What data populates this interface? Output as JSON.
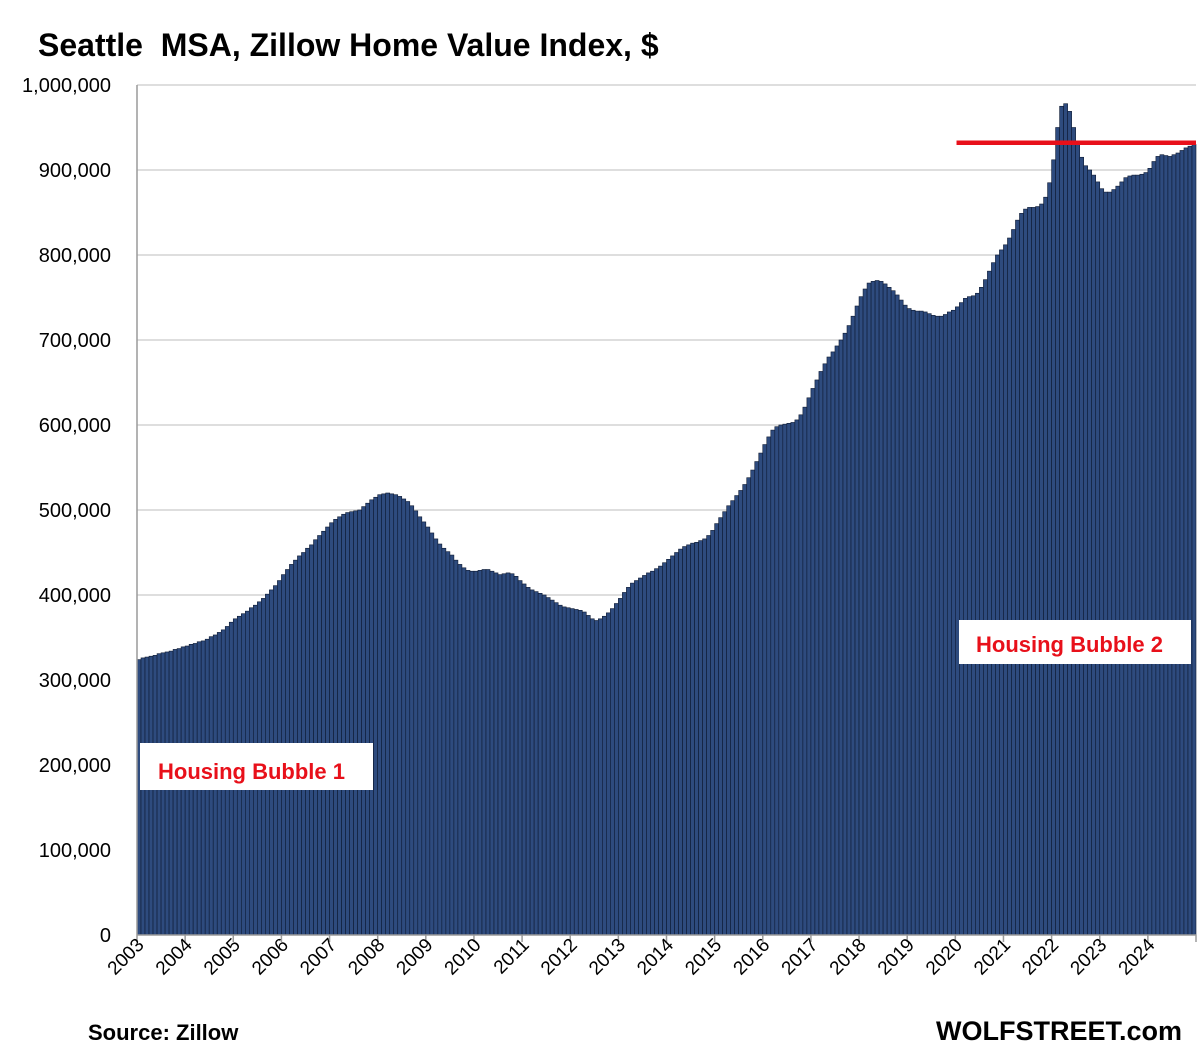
{
  "chart_data": {
    "type": "bar",
    "title": "Seattle  MSA, Zillow Home Value Index, $",
    "xlabel": "",
    "ylabel": "",
    "ylim": [
      0,
      1000000
    ],
    "yticks": [
      "0",
      "100,000",
      "200,000",
      "300,000",
      "400,000",
      "500,000",
      "600,000",
      "700,000",
      "800,000",
      "900,000",
      "1,000,000"
    ],
    "ytick_values": [
      0,
      100000,
      200000,
      300000,
      400000,
      500000,
      600000,
      700000,
      800000,
      900000,
      1000000
    ],
    "xticks": [
      "2003",
      "2004",
      "2005",
      "2006",
      "2007",
      "2008",
      "2009",
      "2010",
      "2011",
      "2012",
      "2013",
      "2014",
      "2015",
      "2016",
      "2017",
      "2018",
      "2019",
      "2020",
      "2021",
      "2022",
      "2023",
      "2024"
    ],
    "frequency": "monthly",
    "start": "2003-01",
    "end": "2024-12",
    "bar_color": "#2e4b7e",
    "reference_line": {
      "value": 932000,
      "from": "2020-01",
      "to": "2024-12",
      "color": "#e8101a"
    },
    "annotations": [
      "Housing Bubble 1",
      "Housing Bubble 2"
    ],
    "source": "Source: Zillow",
    "brand": "WOLFSTREET.com",
    "values": [
      324000,
      326000,
      327000,
      328000,
      329000,
      331000,
      332000,
      333000,
      334000,
      336000,
      337000,
      339000,
      340000,
      342000,
      343000,
      345000,
      346000,
      348000,
      351000,
      353000,
      356000,
      359000,
      363000,
      368000,
      372000,
      375000,
      378000,
      381000,
      385000,
      388000,
      392000,
      396000,
      401000,
      406000,
      411000,
      417000,
      424000,
      430000,
      436000,
      441000,
      446000,
      450000,
      455000,
      459000,
      465000,
      470000,
      475000,
      480000,
      485000,
      489000,
      492000,
      495000,
      497000,
      498000,
      499000,
      500000,
      504000,
      508000,
      512000,
      515000,
      518000,
      519000,
      520000,
      519000,
      518000,
      516000,
      513000,
      510000,
      505000,
      499000,
      492000,
      486000,
      480000,
      473000,
      466000,
      460000,
      455000,
      451000,
      447000,
      441000,
      436000,
      432000,
      429000,
      428000,
      428000,
      429000,
      430000,
      430000,
      428000,
      426000,
      424000,
      425000,
      426000,
      425000,
      422000,
      417000,
      413000,
      409000,
      406000,
      404000,
      402000,
      400000,
      397000,
      394000,
      391000,
      388000,
      386000,
      385000,
      384000,
      383000,
      382000,
      380000,
      376000,
      372000,
      370000,
      372000,
      375000,
      379000,
      384000,
      390000,
      396000,
      403000,
      409000,
      414000,
      417000,
      420000,
      423000,
      426000,
      428000,
      431000,
      434000,
      438000,
      442000,
      446000,
      450000,
      454000,
      457000,
      459000,
      461000,
      462000,
      464000,
      466000,
      470000,
      476000,
      484000,
      491000,
      498000,
      505000,
      511000,
      517000,
      523000,
      530000,
      538000,
      547000,
      557000,
      567000,
      577000,
      586000,
      594000,
      598000,
      600000,
      601000,
      602000,
      603000,
      606000,
      612000,
      621000,
      632000,
      643000,
      653000,
      663000,
      672000,
      680000,
      686000,
      693000,
      700000,
      708000,
      717000,
      728000,
      740000,
      751000,
      760000,
      767000,
      769000,
      770000,
      769000,
      766000,
      762000,
      758000,
      753000,
      747000,
      741000,
      737000,
      735000,
      734000,
      734000,
      733000,
      731000,
      729000,
      728000,
      728000,
      730000,
      733000,
      735000,
      739000,
      744000,
      749000,
      751000,
      752000,
      755000,
      762000,
      771000,
      781000,
      791000,
      800000,
      806000,
      812000,
      820000,
      830000,
      841000,
      849000,
      854000,
      856000,
      856000,
      857000,
      860000,
      868000,
      885000,
      912000,
      950000,
      975000,
      978000,
      969000,
      950000,
      930000,
      915000,
      905000,
      900000,
      894000,
      886000,
      878000,
      874000,
      874000,
      877000,
      881000,
      886000,
      891000,
      893000,
      894000,
      894000,
      895000,
      897000,
      902000,
      910000,
      916000,
      918000,
      917000,
      916000,
      918000,
      920000,
      923000,
      926000,
      928000,
      930000
    ]
  }
}
